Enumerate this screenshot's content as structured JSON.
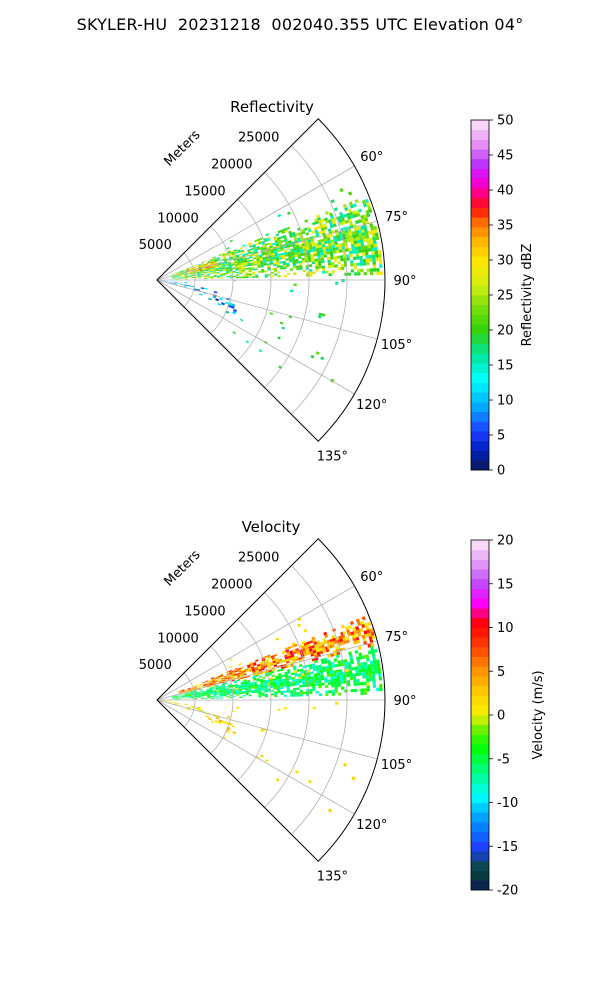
{
  "suptitle": "SKYLER-HU  20231218  002040.355 UTC Elevation 04°",
  "chart_data": [
    {
      "type": "heatmap",
      "subtype": "polar-sector (PPI radar scan)",
      "title": "Reflectivity",
      "range_label": "Meters",
      "range_ticks": [
        5000,
        10000,
        15000,
        20000,
        25000
      ],
      "rmax": 30000,
      "theta_ticks": [
        "60°",
        "75°",
        "90°",
        "105°",
        "120°",
        "135°"
      ],
      "theta_range_deg": [
        45,
        135
      ],
      "grid": true,
      "colorbar": {
        "label": "Reflectivity dBZ",
        "min": 0,
        "max": 50,
        "ticks": [
          0,
          5,
          10,
          15,
          20,
          25,
          30,
          35,
          40,
          45,
          50
        ],
        "colormap": "pyart_HomeyerRainbow (discrete)"
      },
      "echo_regions": [
        {
          "name": "main band",
          "azimuth_deg": [
            68,
            88
          ],
          "range_m": [
            2000,
            29500
          ],
          "value_min": 14,
          "value_max": 30
        },
        {
          "name": "near core",
          "azimuth_deg": [
            71,
            78
          ],
          "range_m": [
            4000,
            8000
          ],
          "value_min": 26,
          "value_max": 36
        },
        {
          "name": "clutter near radar",
          "azimuth_deg": [
            85,
            125
          ],
          "range_m": [
            0,
            11000
          ],
          "value_min": 2,
          "value_max": 15
        },
        {
          "name": "scattered speckles",
          "azimuth_deg": [
            60,
            125
          ],
          "range_m": [
            10000,
            28000
          ],
          "value_min": 15,
          "value_max": 22
        }
      ]
    },
    {
      "type": "heatmap",
      "subtype": "polar-sector (PPI radar scan)",
      "title": "Velocity",
      "range_label": "Meters",
      "range_ticks": [
        5000,
        10000,
        15000,
        20000,
        25000
      ],
      "rmax": 30000,
      "theta_ticks": [
        "60°",
        "75°",
        "90°",
        "105°",
        "120°",
        "135°"
      ],
      "theta_range_deg": [
        45,
        135
      ],
      "grid": true,
      "colorbar": {
        "label": "Velocity (m/s)",
        "min": -20,
        "max": 20,
        "ticks": [
          -20,
          -15,
          -10,
          -5,
          0,
          5,
          10,
          15,
          20
        ],
        "colormap": "pyart_BuDRd18 (discrete)"
      },
      "echo_regions": [
        {
          "name": "main band (upper)",
          "azimuth_deg": [
            68,
            76
          ],
          "range_m": [
            3000,
            29500
          ],
          "value_min": 0,
          "value_max": 11
        },
        {
          "name": "main band (lower)",
          "azimuth_deg": [
            76,
            88
          ],
          "range_m": [
            2000,
            29500
          ],
          "value_min": -9,
          "value_max": -2
        },
        {
          "name": "clutter near radar",
          "azimuth_deg": [
            85,
            125
          ],
          "range_m": [
            0,
            11000
          ],
          "value_min": -1,
          "value_max": 4
        },
        {
          "name": "scattered speckles",
          "azimuth_deg": [
            60,
            125
          ],
          "range_m": [
            10000,
            28000
          ],
          "value_min": 0,
          "value_max": 2
        }
      ]
    }
  ]
}
